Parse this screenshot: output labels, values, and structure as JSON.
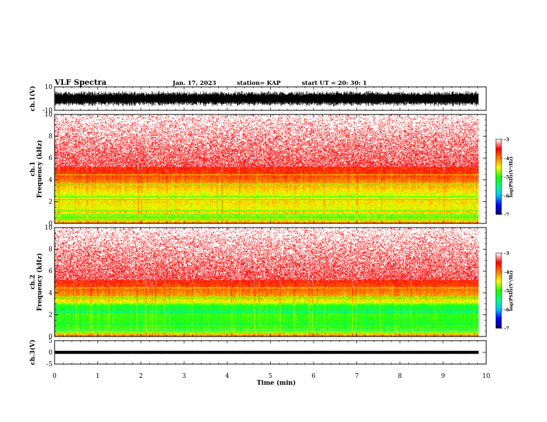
{
  "header": {
    "title": "VLF Spectra",
    "date": "Jan. 17, 2023",
    "station": "station= KAP",
    "start_ut": "start  UT =   20: 30: 1"
  },
  "chart_data": [
    {
      "type": "line",
      "name": "waveform-ch1",
      "ylabel": "ch.1(V)",
      "yticks": [
        "10",
        "-10"
      ],
      "ylim": [
        -10,
        10
      ],
      "xlim": [
        0,
        10
      ],
      "data_end_x": 9.82,
      "amplitude_v": 7
    },
    {
      "type": "heatmap",
      "name": "spectrogram-ch1",
      "ylabel_top": "ch.1",
      "ylabel": "Frequency (kHz)",
      "ylim": [
        0,
        10
      ],
      "yticks": [
        "0",
        "2",
        "4",
        "6",
        "8",
        "10"
      ],
      "xlim": [
        0,
        10
      ],
      "colorbar": {
        "label": "log(PSD)(V²/Hz)",
        "range": [
          -7,
          -3
        ],
        "ticks": [
          "-3",
          "-4",
          "-5",
          "-6",
          "-7"
        ]
      },
      "psd_profile_khz": [
        [
          0,
          -3.9
        ],
        [
          0.6,
          -4.9
        ],
        [
          1.0,
          -4.3
        ],
        [
          1.5,
          -4.55
        ],
        [
          2.0,
          -4.35
        ],
        [
          2.6,
          -4.6
        ],
        [
          3.0,
          -4.4
        ],
        [
          3.6,
          -4.15
        ],
        [
          4.2,
          -3.85
        ],
        [
          5.0,
          -3.6
        ],
        [
          6.0,
          -3.35
        ],
        [
          8.0,
          -3.1
        ],
        [
          10.0,
          -3.0
        ]
      ]
    },
    {
      "type": "heatmap",
      "name": "spectrogram-ch2",
      "ylabel_top": "ch.2",
      "ylabel": "Frequency (kHz)",
      "ylim": [
        0,
        10
      ],
      "yticks": [
        "0",
        "2",
        "4",
        "6",
        "8",
        "10"
      ],
      "xlim": [
        0,
        10
      ],
      "colorbar": {
        "label": "log(PSD)(V²/Hz)",
        "range": [
          -7,
          -3
        ],
        "ticks": [
          "-3",
          "-4",
          "-5",
          "-6",
          "-7"
        ]
      },
      "psd_profile_khz": [
        [
          0,
          -3.9
        ],
        [
          0.7,
          -4.9
        ],
        [
          1.2,
          -5.1
        ],
        [
          2.0,
          -5.0
        ],
        [
          2.8,
          -5.2
        ],
        [
          3.2,
          -4.5
        ],
        [
          3.8,
          -4.1
        ],
        [
          4.4,
          -3.9
        ],
        [
          5.2,
          -3.55
        ],
        [
          6.0,
          -3.35
        ],
        [
          8.0,
          -3.1
        ],
        [
          10.0,
          -3.0
        ]
      ]
    },
    {
      "type": "line",
      "name": "waveform-ch3",
      "ylabel": "ch.3(V)",
      "yticks": [
        "5",
        "0",
        "-5"
      ],
      "ylim": [
        -5,
        5
      ],
      "xlim": [
        0,
        10
      ],
      "data_end_x": 9.82,
      "amplitude_v": 0.4
    }
  ],
  "x_axis": {
    "label": "Time (min)",
    "ticks": [
      "0",
      "1",
      "2",
      "3",
      "4",
      "5",
      "6",
      "7",
      "8",
      "9",
      "10"
    ]
  },
  "colors": {
    "waveform": "#000000",
    "colormap": [
      "#000080",
      "#0000ff",
      "#00c8ff",
      "#00ff80",
      "#20ff00",
      "#ffff00",
      "#ff8000",
      "#ff0000",
      "#ffffff"
    ]
  }
}
